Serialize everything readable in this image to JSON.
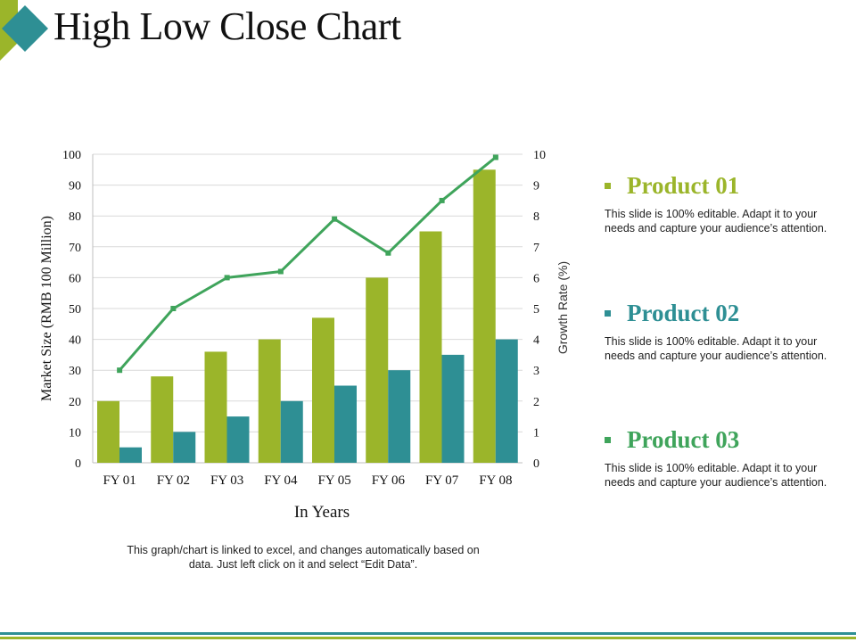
{
  "page": {
    "title": "High Low Close Chart"
  },
  "legend": [
    {
      "title": "Product 01",
      "desc": "This slide is 100% editable. Adapt it to your needs and capture your audience’s attention.",
      "color": "#9BB52A"
    },
    {
      "title": "Product 02",
      "desc": "This slide is 100% editable. Adapt it to your needs and capture your audience’s attention.",
      "color": "#2E8F94"
    },
    {
      "title": "Product 03",
      "desc": "This slide is 100% editable. Adapt it to your needs and capture your audience’s attention.",
      "color": "#3FA45B"
    }
  ],
  "note": "This graph/chart is linked to excel, and changes automatically based on data. Just left click on it and select “Edit Data”.",
  "colors": {
    "accent_green": "#9BB52A",
    "accent_teal": "#2E8F94",
    "line_green": "#3FA45B"
  },
  "chart_data": {
    "type": "bar",
    "categories": [
      "FY 01",
      "FY 02",
      "FY 03",
      "FY 04",
      "FY 05",
      "FY 06",
      "FY 07",
      "FY 08"
    ],
    "series": [
      {
        "values": [
          20,
          28,
          36,
          40,
          47,
          60,
          75,
          95
        ],
        "color": "#9BB52A",
        "axis": "left",
        "kind": "bar"
      },
      {
        "values": [
          5,
          10,
          15,
          20,
          25,
          30,
          35,
          40
        ],
        "color": "#2E8F94",
        "axis": "left",
        "kind": "bar"
      },
      {
        "values": [
          3,
          5,
          6,
          6.2,
          7.9,
          6.8,
          8.5,
          9.9
        ],
        "color": "#3FA45B",
        "axis": "right",
        "kind": "line"
      }
    ],
    "xlabel": "In Years",
    "ylabel": "Market Size (RMB 100 Million)",
    "ylabel_right": "Growth Rate (%)",
    "ylim": [
      0,
      100
    ],
    "ylim_right": [
      0,
      10
    ],
    "yticks": [
      "0",
      "10",
      "20",
      "30",
      "40",
      "50",
      "60",
      "70",
      "80",
      "90",
      "100"
    ],
    "yticks_right": [
      "0",
      "1",
      "2",
      "3",
      "4",
      "5",
      "6",
      "7",
      "8",
      "9",
      "10"
    ],
    "grid": true
  }
}
